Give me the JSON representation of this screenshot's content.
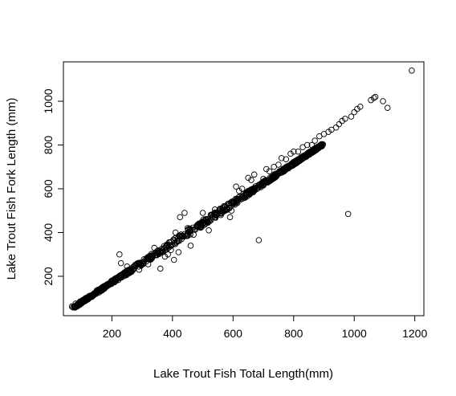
{
  "chart_data": {
    "type": "scatter",
    "title": "",
    "xlabel": "Lake Trout Fish Total Length(mm)",
    "ylabel": "Lake Trout Fish Fork Length (mm)",
    "xlim": [
      40,
      1230
    ],
    "ylim": [
      20,
      1180
    ],
    "xticks": [
      200,
      400,
      600,
      800,
      1000,
      1200
    ],
    "yticks": [
      200,
      400,
      600,
      800,
      1000
    ],
    "xtick_labels": [
      "200",
      "400",
      "600",
      "800",
      "1000",
      "1200"
    ],
    "ytick_labels": [
      "200",
      "400",
      "600",
      "800",
      "1000"
    ],
    "grid": false,
    "legend": "none",
    "marker": "open-circle",
    "color": "#000000",
    "trend": {
      "slope": 0.905,
      "intercept": -9,
      "x_min": 70,
      "x_max": 1000,
      "spread": 10
    },
    "series": [
      {
        "points": [
          [
            68,
            62
          ],
          [
            80,
            75
          ],
          [
            95,
            85
          ],
          [
            110,
            95
          ],
          [
            130,
            112
          ],
          [
            150,
            135
          ],
          [
            175,
            155
          ],
          [
            200,
            175
          ],
          [
            225,
            300
          ],
          [
            230,
            260
          ],
          [
            250,
            245
          ],
          [
            265,
            225
          ],
          [
            290,
            230
          ],
          [
            305,
            260
          ],
          [
            320,
            255
          ],
          [
            335,
            290
          ],
          [
            340,
            330
          ],
          [
            360,
            235
          ],
          [
            375,
            290
          ],
          [
            385,
            300
          ],
          [
            395,
            320
          ],
          [
            405,
            275
          ],
          [
            410,
            400
          ],
          [
            420,
            310
          ],
          [
            425,
            470
          ],
          [
            440,
            490
          ],
          [
            450,
            420
          ],
          [
            460,
            340
          ],
          [
            470,
            390
          ],
          [
            480,
            430
          ],
          [
            500,
            490
          ],
          [
            520,
            410
          ],
          [
            540,
            505
          ],
          [
            560,
            480
          ],
          [
            570,
            520
          ],
          [
            590,
            470
          ],
          [
            595,
            500
          ],
          [
            610,
            610
          ],
          [
            620,
            590
          ],
          [
            630,
            600
          ],
          [
            650,
            650
          ],
          [
            660,
            640
          ],
          [
            670,
            665
          ],
          [
            685,
            365
          ],
          [
            700,
            645
          ],
          [
            710,
            690
          ],
          [
            720,
            680
          ],
          [
            735,
            700
          ],
          [
            750,
            710
          ],
          [
            760,
            740
          ],
          [
            775,
            735
          ],
          [
            790,
            760
          ],
          [
            800,
            770
          ],
          [
            815,
            770
          ],
          [
            830,
            790
          ],
          [
            845,
            800
          ],
          [
            860,
            800
          ],
          [
            870,
            820
          ],
          [
            885,
            840
          ],
          [
            900,
            850
          ],
          [
            915,
            860
          ],
          [
            925,
            870
          ],
          [
            940,
            880
          ],
          [
            950,
            895
          ],
          [
            960,
            910
          ],
          [
            970,
            920
          ],
          [
            980,
            485
          ],
          [
            990,
            930
          ],
          [
            1000,
            950
          ],
          [
            1010,
            965
          ],
          [
            1020,
            975
          ],
          [
            1055,
            1005
          ],
          [
            1065,
            1015
          ],
          [
            1070,
            1020
          ],
          [
            1095,
            1000
          ],
          [
            1110,
            970
          ],
          [
            1190,
            1140
          ]
        ]
      }
    ]
  }
}
